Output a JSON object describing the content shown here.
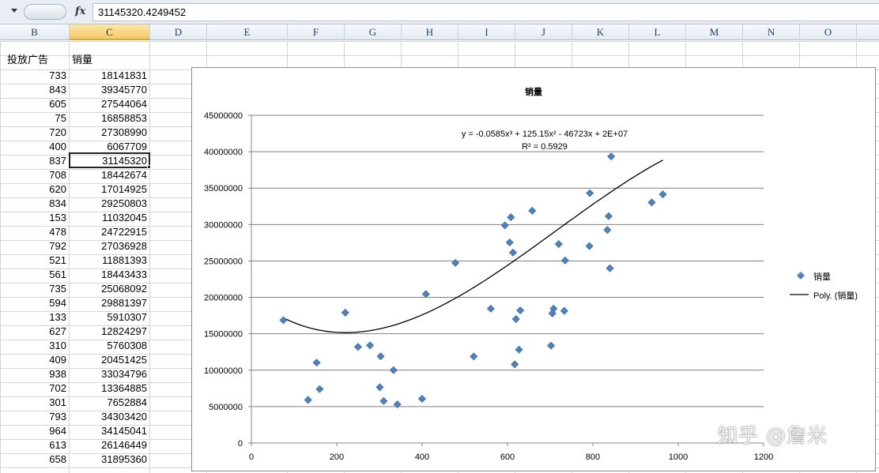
{
  "formula_bar": {
    "fx_label": "fx",
    "value": "31145320.4249452"
  },
  "columns": [
    "B",
    "C",
    "D",
    "E",
    "F",
    "G",
    "H",
    "I",
    "J",
    "K",
    "L",
    "M",
    "N",
    "O"
  ],
  "selected_column": "C",
  "table": {
    "headers": [
      "投放广告",
      "销量"
    ],
    "rows": [
      [
        "733",
        "18141831"
      ],
      [
        "843",
        "39345770"
      ],
      [
        "605",
        "27544064"
      ],
      [
        "75",
        "16858853"
      ],
      [
        "720",
        "27308990"
      ],
      [
        "400",
        "6067709"
      ],
      [
        "837",
        "31145320"
      ],
      [
        "708",
        "18442674"
      ],
      [
        "620",
        "17014925"
      ],
      [
        "834",
        "29250803"
      ],
      [
        "153",
        "11032045"
      ],
      [
        "478",
        "24722915"
      ],
      [
        "792",
        "27036928"
      ],
      [
        "521",
        "11881393"
      ],
      [
        "561",
        "18443433"
      ],
      [
        "735",
        "25068092"
      ],
      [
        "594",
        "29881397"
      ],
      [
        "133",
        "5910307"
      ],
      [
        "627",
        "12824297"
      ],
      [
        "310",
        "5760308"
      ],
      [
        "409",
        "20451425"
      ],
      [
        "938",
        "33034796"
      ],
      [
        "702",
        "13364885"
      ],
      [
        "301",
        "7652884"
      ],
      [
        "793",
        "34303420"
      ],
      [
        "964",
        "34145041"
      ],
      [
        "613",
        "26146449"
      ],
      [
        "658",
        "31895360"
      ]
    ],
    "active_row_index": 6
  },
  "chart_data": {
    "type": "scatter",
    "title": "销量",
    "xlim": [
      0,
      1200
    ],
    "ylim": [
      0,
      45000000
    ],
    "x_ticks": [
      0,
      200,
      400,
      600,
      800,
      1000,
      1200
    ],
    "y_ticks": [
      0,
      5000000,
      10000000,
      15000000,
      20000000,
      25000000,
      30000000,
      35000000,
      40000000,
      45000000
    ],
    "grid": true,
    "legend_position": "right",
    "series": [
      {
        "name": "销量",
        "marker": "diamond",
        "color": "#4f81bd",
        "points": [
          [
            733,
            18141831
          ],
          [
            843,
            39345770
          ],
          [
            605,
            27544064
          ],
          [
            75,
            16858853
          ],
          [
            720,
            27308990
          ],
          [
            400,
            6067709
          ],
          [
            837,
            31145320
          ],
          [
            708,
            18442674
          ],
          [
            620,
            17014925
          ],
          [
            834,
            29250803
          ],
          [
            153,
            11032045
          ],
          [
            478,
            24722915
          ],
          [
            792,
            27036928
          ],
          [
            521,
            11881393
          ],
          [
            561,
            18443433
          ],
          [
            735,
            25068092
          ],
          [
            594,
            29881397
          ],
          [
            133,
            5910307
          ],
          [
            627,
            12824297
          ],
          [
            310,
            5760308
          ],
          [
            409,
            20451425
          ],
          [
            938,
            33034796
          ],
          [
            702,
            13364885
          ],
          [
            301,
            7652884
          ],
          [
            793,
            34303420
          ],
          [
            964,
            34145041
          ],
          [
            613,
            26146449
          ],
          [
            658,
            31895360
          ],
          [
            160,
            7400000
          ],
          [
            220,
            17900000
          ],
          [
            250,
            13200000
          ],
          [
            278,
            13400000
          ],
          [
            303,
            11900000
          ],
          [
            333,
            10000000
          ],
          [
            342,
            5300000
          ],
          [
            608,
            31000000
          ],
          [
            617,
            10800000
          ],
          [
            630,
            18200000
          ],
          [
            705,
            17800000
          ],
          [
            840,
            24000000
          ]
        ]
      }
    ],
    "trendline": {
      "name": "Poly. (销量)",
      "coefficients": [
        -0.0585,
        125.15,
        -46723,
        20000000
      ],
      "x_range": [
        75,
        964
      ],
      "color": "#000000"
    },
    "equation_text": "y = -0.0585x³ + 125.15x² - 46723x + 2E+07",
    "r_squared_text": "R² = 0.5929"
  },
  "watermark": "知乎 @詹米"
}
